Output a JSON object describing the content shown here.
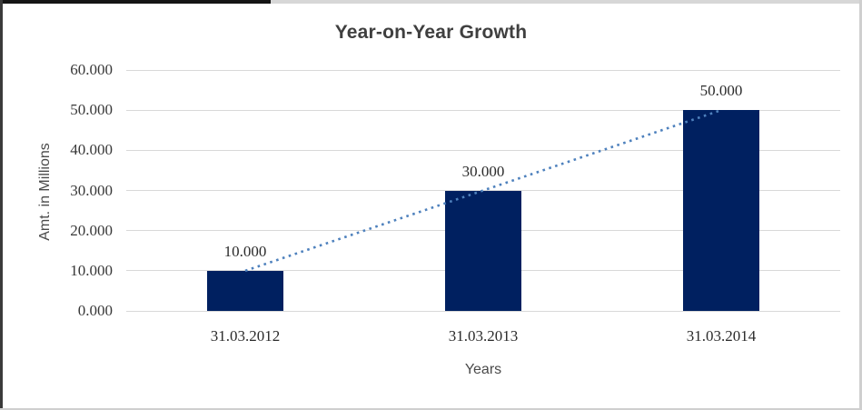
{
  "chart_data": {
    "type": "bar",
    "title": "Year-on-Year Growth",
    "xlabel": "Years",
    "ylabel": "Amt. in Millions",
    "categories": [
      "31.03.2012",
      "31.03.2013",
      "31.03.2014"
    ],
    "values": [
      10,
      30,
      50
    ],
    "value_labels": [
      "10.000",
      "30.000",
      "50.000"
    ],
    "y_ticks": {
      "values": [
        0,
        10,
        20,
        30,
        40,
        50,
        60
      ],
      "labels": [
        "0.000",
        "10.000",
        "20.000",
        "30.000",
        "40.000",
        "50.000",
        "60.000"
      ]
    },
    "ylim": [
      0,
      60
    ],
    "grid": true,
    "legend": "none",
    "trendline": {
      "type": "linear",
      "style": "dotted",
      "points": [
        {
          "category_index": 0,
          "value": 10
        },
        {
          "category_index": 2,
          "value": 50
        }
      ],
      "color": "#4e81bd"
    },
    "colors": {
      "bar": "#002060",
      "gridline": "#d9d9d9",
      "title_text": "#3f3f3f",
      "tick_text": "#383838",
      "axis_title_text": "#4a4a4a"
    }
  }
}
